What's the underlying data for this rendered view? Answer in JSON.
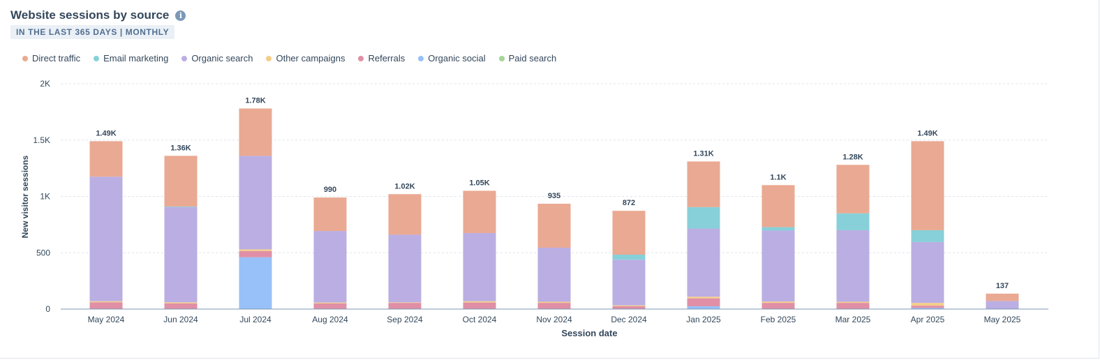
{
  "header": {
    "title": "Website sessions by source",
    "info_icon": "info-icon",
    "range_label": "IN THE LAST 365 DAYS | MONTHLY"
  },
  "legend": [
    {
      "label": "Direct traffic",
      "color": "#eaa992"
    },
    {
      "label": "Email marketing",
      "color": "#87d0d9"
    },
    {
      "label": "Organic search",
      "color": "#bbaee3"
    },
    {
      "label": "Other campaigns",
      "color": "#f3cd8a"
    },
    {
      "label": "Referrals",
      "color": "#e08fa6"
    },
    {
      "label": "Organic social",
      "color": "#97c1f8"
    },
    {
      "label": "Paid search",
      "color": "#a6d59a"
    }
  ],
  "chart_data": {
    "type": "bar",
    "stacked": true,
    "xlabel": "Session date",
    "ylabel": "New visitor sessions",
    "ylim": [
      0,
      2000
    ],
    "yticks": [
      0,
      500,
      1000,
      1500,
      2000
    ],
    "ytick_labels": [
      "0",
      "500",
      "1K",
      "1.5K",
      "2K"
    ],
    "grid": true,
    "legend_position": "top-left",
    "categories": [
      "May 2024",
      "Jun 2024",
      "Jul 2024",
      "Aug 2024",
      "Sep 2024",
      "Oct 2024",
      "Nov 2024",
      "Dec 2024",
      "Jan 2025",
      "Feb 2025",
      "Mar 2025",
      "Apr 2025",
      "May 2025"
    ],
    "totals": [
      1490,
      1360,
      1780,
      990,
      1020,
      1050,
      935,
      872,
      1310,
      1100,
      1280,
      1490,
      137
    ],
    "total_labels": [
      "1.49K",
      "1.36K",
      "1.78K",
      "990",
      "1.02K",
      "1.05K",
      "935",
      "872",
      "1.31K",
      "1.1K",
      "1.28K",
      "1.49K",
      "137"
    ],
    "series": [
      {
        "name": "Organic social",
        "color": "#97c1f8",
        "values": [
          0,
          0,
          460,
          0,
          0,
          0,
          0,
          0,
          25,
          0,
          0,
          10,
          0
        ]
      },
      {
        "name": "Referrals",
        "color": "#e08fa6",
        "values": [
          60,
          50,
          55,
          50,
          55,
          58,
          55,
          25,
          70,
          55,
          55,
          20,
          0
        ]
      },
      {
        "name": "Other campaigns",
        "color": "#f3cd8a",
        "values": [
          10,
          10,
          15,
          8,
          5,
          12,
          10,
          8,
          15,
          12,
          10,
          25,
          0
        ]
      },
      {
        "name": "Paid search",
        "color": "#a6d59a",
        "values": [
          0,
          0,
          0,
          0,
          0,
          0,
          0,
          0,
          0,
          0,
          0,
          0,
          0
        ]
      },
      {
        "name": "Organic search",
        "color": "#bbaee3",
        "values": [
          1105,
          845,
          830,
          635,
          600,
          605,
          480,
          405,
          605,
          630,
          635,
          540,
          72
        ]
      },
      {
        "name": "Email marketing",
        "color": "#87d0d9",
        "values": [
          0,
          5,
          0,
          0,
          0,
          0,
          0,
          45,
          190,
          30,
          150,
          105,
          0
        ]
      },
      {
        "name": "Direct traffic",
        "color": "#eaa992",
        "values": [
          315,
          450,
          420,
          297,
          360,
          375,
          390,
          389,
          405,
          373,
          430,
          790,
          65
        ]
      }
    ]
  }
}
